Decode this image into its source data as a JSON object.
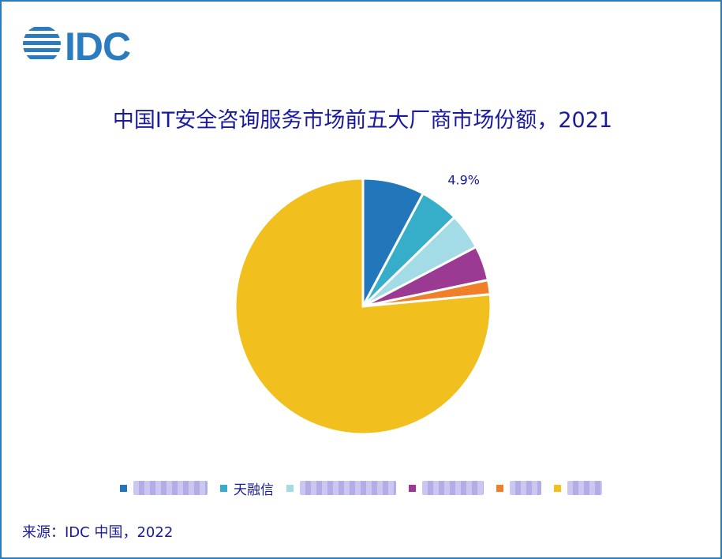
{
  "logo": {
    "text": "IDC",
    "color": "#2b7bbf"
  },
  "chart_data": {
    "type": "pie",
    "title": "中国IT安全咨询服务市场前五大厂商市场份额，2021",
    "slices": [
      {
        "name": "",
        "value": 7.8,
        "color": "#2277bb"
      },
      {
        "name": "天融信",
        "value": 4.9,
        "color": "#36aec9"
      },
      {
        "name": "",
        "value": 4.6,
        "color": "#a3dbe6"
      },
      {
        "name": "",
        "value": 4.4,
        "color": "#9b3a93"
      },
      {
        "name": "",
        "value": 1.8,
        "color": "#f07f2a"
      },
      {
        "name": "",
        "value": 76.5,
        "color": "#f2c01e"
      }
    ],
    "data_labels": [
      {
        "slice": 1,
        "text": "4.9%"
      }
    ],
    "legend_position": "bottom"
  },
  "source": "来源：IDC 中国，2022"
}
